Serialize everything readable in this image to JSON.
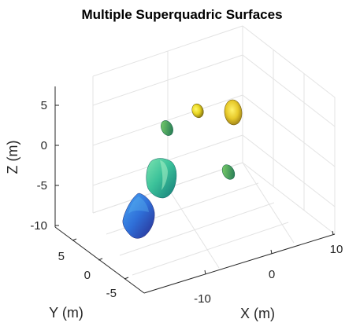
{
  "chart_data": {
    "type": "scatter",
    "title": "Multiple Superquadric Surfaces",
    "xlabel": "X (m)",
    "ylabel": "Y (m)",
    "zlabel": "Z (m)",
    "x_ticks": [
      "-10",
      "0",
      "10"
    ],
    "y_ticks": [
      "5",
      "0",
      "-5"
    ],
    "z_ticks": [
      "5",
      "0",
      "-5",
      "-10"
    ],
    "grid": true,
    "colormap": [
      "#3e26a8",
      "#2d8ff5",
      "#17b7a7",
      "#7bcc5a",
      "#e7bf2b",
      "#f9fb15"
    ],
    "surfaces": [
      {
        "name": "surface-1",
        "color_top": "#3a7ef0",
        "color_bottom": "#2d2f9c"
      },
      {
        "name": "surface-2",
        "color_top": "#4fd19a",
        "color_bottom": "#1a8c83"
      },
      {
        "name": "surface-3",
        "color_top": "#52c56a",
        "color_bottom": "#1a7a55"
      },
      {
        "name": "surface-4",
        "color_top": "#6dc85a",
        "color_bottom": "#1d7e57"
      },
      {
        "name": "surface-5",
        "color_top": "#f4ec2b",
        "color_bottom": "#9a8a14"
      },
      {
        "name": "surface-6",
        "color_top": "#f8e83a",
        "color_bottom": "#8f7a16"
      }
    ]
  }
}
